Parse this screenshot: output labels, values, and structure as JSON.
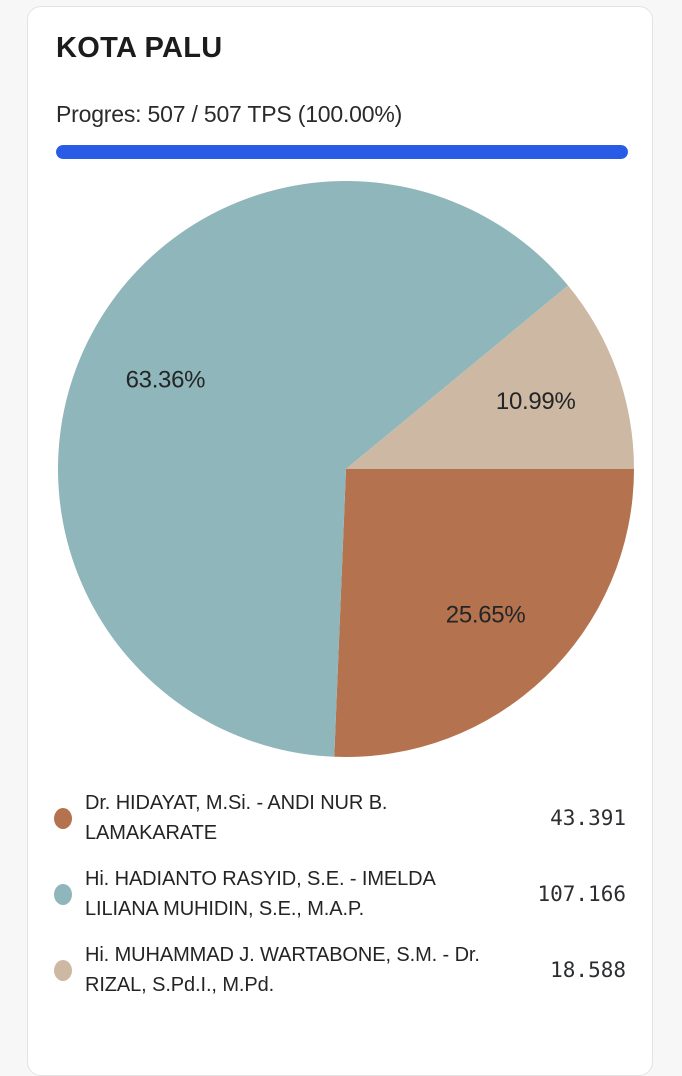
{
  "header": {
    "title": "KOTA PALU",
    "progress_label": "Progres: 507 / 507 TPS (100.00%)",
    "progress_percent": 100,
    "progress_color": "#2a5be6"
  },
  "chart_data": {
    "type": "pie",
    "title": "KOTA PALU",
    "start_angle_deg": 0,
    "direction": "clockwise",
    "legend_position": "bottom",
    "label_radius_factor": 0.7,
    "series": [
      {
        "name": "Dr. HIDAYAT, M.Si. - ANDI NUR B. LAMAKARATE",
        "name_lines": [
          "Dr. HIDAYAT, M.Si. - ANDI NUR B.",
          "LAMAKARATE"
        ],
        "value": 43391,
        "value_display": "43.391",
        "percent": 25.65,
        "percent_label": "25.65%",
        "color": "#b4734e"
      },
      {
        "name": "Hi. HADIANTO RASYID, S.E. - IMELDA LILIANA MUHIDIN, S.E., M.A.P.",
        "name_lines": [
          "Hi. HADIANTO RASYID, S.E. - IMELDA",
          "LILIANA MUHIDIN, S.E., M.A.P."
        ],
        "value": 107166,
        "value_display": "107.166",
        "percent": 63.36,
        "percent_label": "63.36%",
        "color": "#8fb6ba"
      },
      {
        "name": "Hi. MUHAMMAD J. WARTABONE, S.M. - Dr. RIZAL, S.Pd.I., M.Pd.",
        "name_lines": [
          "Hi. MUHAMMAD J. WARTABONE, S.M. - Dr.",
          "RIZAL, S.Pd.I., M.Pd."
        ],
        "value": 18588,
        "value_display": "18.588",
        "percent": 10.99,
        "percent_label": "10.99%",
        "color": "#cdb9a3"
      }
    ]
  }
}
